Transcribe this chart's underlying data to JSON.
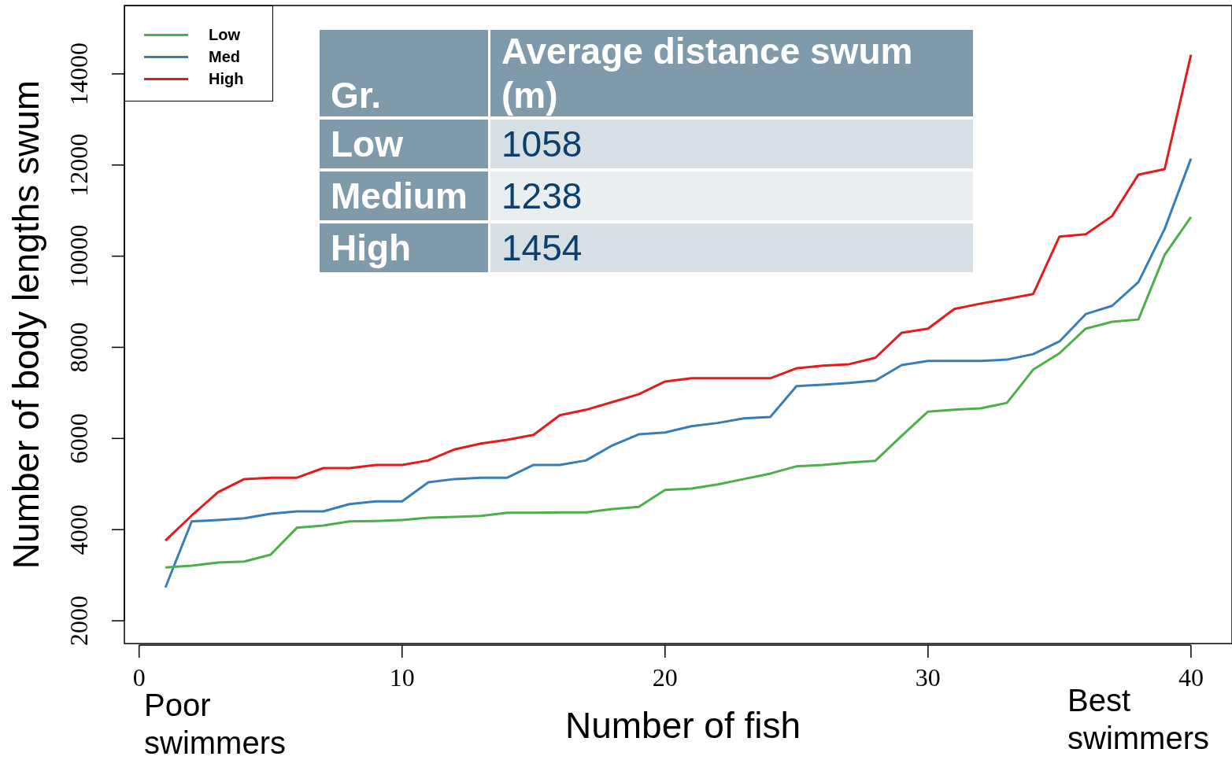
{
  "chart_data": {
    "type": "line",
    "xlabel": "Number of fish",
    "ylabel": "Number of body lengths swum",
    "x": [
      1,
      2,
      3,
      4,
      5,
      6,
      7,
      8,
      9,
      10,
      11,
      12,
      13,
      14,
      15,
      16,
      17,
      18,
      19,
      20,
      21,
      22,
      23,
      24,
      25,
      26,
      27,
      28,
      29,
      30,
      31,
      32,
      33,
      34,
      35,
      36,
      37,
      38,
      39,
      40
    ],
    "series": [
      {
        "name": "Low",
        "color": "#4daf4a",
        "values": [
          3170,
          3210,
          3280,
          3300,
          3450,
          4040,
          4090,
          4180,
          4190,
          4210,
          4260,
          4280,
          4300,
          4370,
          4370,
          4380,
          4380,
          4450,
          4500,
          4870,
          4900,
          4990,
          5110,
          5230,
          5390,
          5420,
          5470,
          5510,
          6060,
          6590,
          6630,
          6660,
          6780,
          7510,
          7870,
          8410,
          8560,
          8610,
          10030,
          10860
        ]
      },
      {
        "name": "Med",
        "color": "#377eb8",
        "values": [
          2730,
          4180,
          4210,
          4250,
          4350,
          4400,
          4400,
          4560,
          4620,
          4620,
          5040,
          5110,
          5140,
          5140,
          5420,
          5420,
          5520,
          5850,
          6090,
          6130,
          6270,
          6340,
          6440,
          6470,
          7150,
          7180,
          7220,
          7270,
          7610,
          7700,
          7700,
          7700,
          7730,
          7850,
          8130,
          8730,
          8910,
          9430,
          10600,
          12140
        ]
      },
      {
        "name": "High",
        "color": "#e41a1c",
        "values": [
          3760,
          4310,
          4820,
          5110,
          5140,
          5140,
          5350,
          5350,
          5420,
          5420,
          5520,
          5760,
          5890,
          5970,
          6080,
          6510,
          6630,
          6800,
          6970,
          7250,
          7320,
          7320,
          7320,
          7320,
          7540,
          7600,
          7630,
          7770,
          8320,
          8410,
          8840,
          8960,
          9060,
          9170,
          10430,
          10480,
          10880,
          11790,
          11910,
          14420
        ]
      }
    ],
    "xlim": [
      -0.56,
      41.56
    ],
    "xticks": [
      0,
      10,
      20,
      30,
      40
    ],
    "ylim": [
      1500,
      15500
    ],
    "yticks": [
      2000,
      4000,
      6000,
      8000,
      10000,
      12000,
      14000
    ],
    "grid": false,
    "legend": "top left",
    "marker": "none",
    "line_style": "solid",
    "annotations": [
      "Poor swimmers",
      "Best swimmers",
      "Gr.",
      "Average distance swum (m)",
      "Low",
      "1058",
      "Medium",
      "1238",
      "High",
      "1454"
    ]
  }
}
